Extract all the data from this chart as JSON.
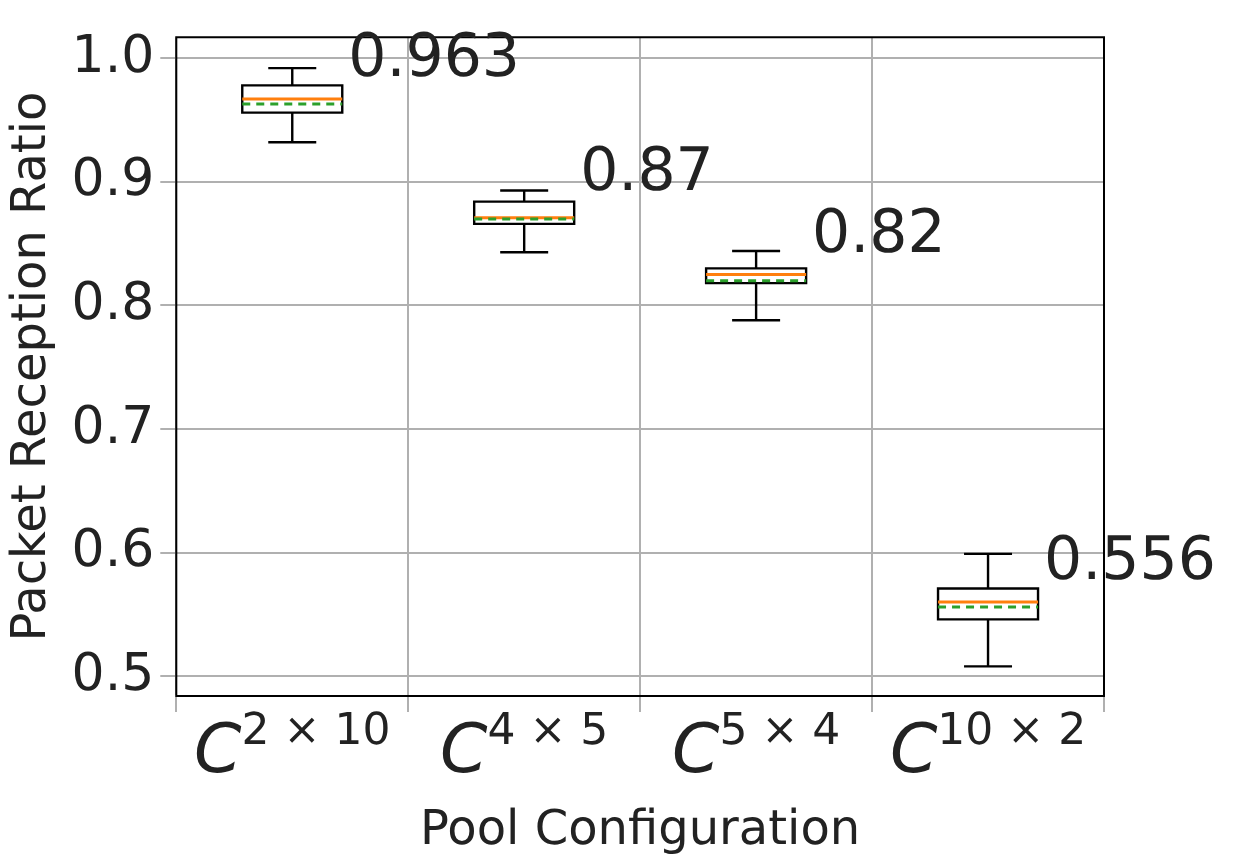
{
  "chart_data": {
    "type": "box",
    "xlabel": "Pool Configuration",
    "ylabel": "Packet Reception Ratio",
    "categories": [
      "C$^{2 × 10}$",
      "C$^{4 × 5}$",
      "C$^{5 × 4}$",
      "C$^{10 × 2}$"
    ],
    "boxes": [
      {
        "low": 0.932,
        "q1": 0.956,
        "median": 0.967,
        "q3": 0.978,
        "high": 0.992,
        "mean": 0.963
      },
      {
        "low": 0.843,
        "q1": 0.866,
        "median": 0.871,
        "q3": 0.884,
        "high": 0.893,
        "mean": 0.87
      },
      {
        "low": 0.788,
        "q1": 0.818,
        "median": 0.825,
        "q3": 0.83,
        "high": 0.844,
        "mean": 0.82
      },
      {
        "low": 0.508,
        "q1": 0.546,
        "median": 0.56,
        "q3": 0.571,
        "high": 0.599,
        "mean": 0.556
      }
    ],
    "ylim": [
      0.484,
      1.017
    ],
    "yticks": [
      0.5,
      0.6,
      0.7,
      0.8,
      0.9,
      {
        "value": 1,
        "label": "1.0"
      }
    ],
    "grid": true,
    "annotations": [
      {
        "text": "0.963",
        "x": "C$^{2 × 10}$",
        "y": 0.963
      },
      {
        "text": "0.87",
        "x": "C$^{4 × 5}$",
        "y": 0.87
      },
      {
        "text": "0.82",
        "x": "C$^{5 × 4}$",
        "y": 0.82
      },
      {
        "text": "0.556",
        "x": "C$^{10 × 2}$",
        "y": 0.556
      }
    ]
  }
}
